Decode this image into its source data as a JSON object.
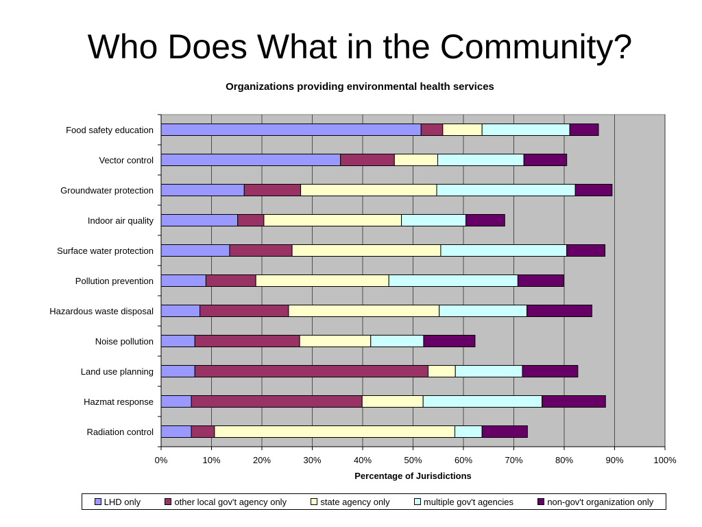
{
  "slide_title": "Who Does What in the Community?",
  "chart_data": {
    "type": "bar",
    "orientation": "horizontal",
    "stacked": true,
    "title": "Organizations providing environmental health services",
    "xlabel": "Percentage of Jurisdictions",
    "ylabel": "",
    "xlim": [
      0,
      100
    ],
    "x_ticks": [
      "0%",
      "10%",
      "20%",
      "30%",
      "40%",
      "50%",
      "60%",
      "70%",
      "80%",
      "90%",
      "100%"
    ],
    "grid": true,
    "legend_position": "bottom",
    "categories": [
      "Food safety education",
      "Vector control",
      "Groundwater protection",
      "Indoor air quality",
      "Surface water protection",
      "Pollution prevention",
      "Hazardous waste disposal",
      "Noise pollution",
      "Land use planning",
      "Hazmat response",
      "Radiation control"
    ],
    "series": [
      {
        "name": "LHD only",
        "color": "#9999FF",
        "values": [
          51.6,
          35.6,
          16.5,
          15.2,
          13.6,
          8.9,
          7.7,
          6.7,
          6.7,
          6.0,
          6.0
        ]
      },
      {
        "name": "other local gov't agency only",
        "color": "#993366",
        "values": [
          4.3,
          10.7,
          11.2,
          5.2,
          12.4,
          9.9,
          17.6,
          20.8,
          46.3,
          33.9,
          4.6
        ]
      },
      {
        "name": "state agency only",
        "color": "#FFFFCC",
        "values": [
          7.8,
          8.6,
          27.0,
          27.3,
          29.5,
          26.4,
          29.9,
          14.1,
          5.4,
          12.1,
          47.7
        ]
      },
      {
        "name": "multiple gov't agencies",
        "color": "#CCFFFF",
        "values": [
          17.4,
          17.1,
          27.5,
          12.8,
          25.0,
          25.6,
          17.4,
          10.5,
          13.3,
          23.6,
          5.4
        ]
      },
      {
        "name": "non-gov't organization only",
        "color": "#660066",
        "values": [
          5.7,
          8.5,
          7.3,
          7.7,
          7.6,
          9.1,
          12.9,
          10.2,
          11.0,
          12.6,
          9.0
        ]
      }
    ]
  }
}
